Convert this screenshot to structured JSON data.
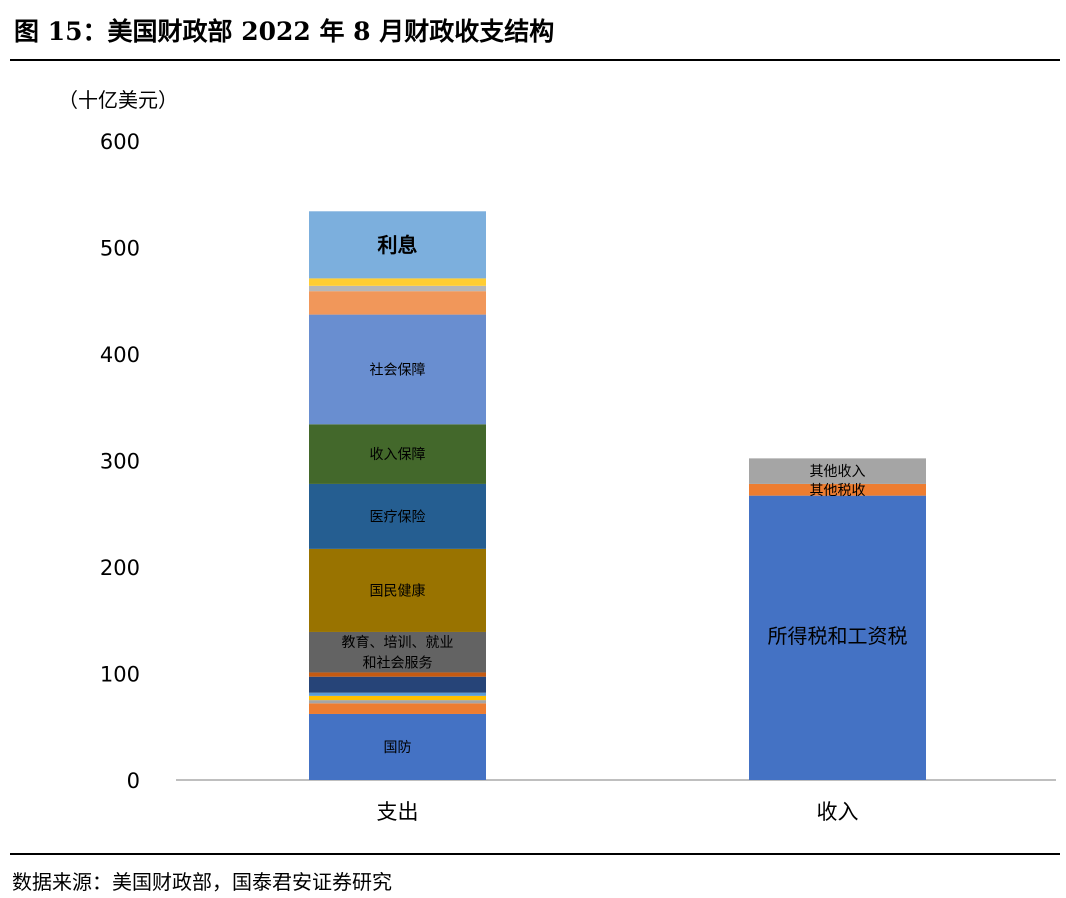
{
  "header": {
    "title": "图 15：美国财政部 2022 年 8 月财政收支结构"
  },
  "footer": {
    "source": "数据来源：美国财政部，国泰君安证券研究"
  },
  "chart_data": {
    "type": "bar",
    "stacked": true,
    "unit_label": "（十亿美元）",
    "ylim": [
      0,
      600
    ],
    "yticks": [
      0,
      100,
      200,
      300,
      400,
      500,
      600
    ],
    "categories": [
      "支出",
      "收入"
    ],
    "stacks": [
      {
        "category": "支出",
        "segments": [
          {
            "name": "国防",
            "value": 62,
            "color": "#4472C4",
            "label": "国防"
          },
          {
            "name": "orange-1",
            "value": 10,
            "color": "#ED7D31",
            "label": ""
          },
          {
            "name": "gray-1",
            "value": 3,
            "color": "#A5A5A5",
            "label": ""
          },
          {
            "name": "yellow-1",
            "value": 4,
            "color": "#FFC000",
            "label": ""
          },
          {
            "name": "lightblue-1",
            "value": 3,
            "color": "#5B9BD5",
            "label": ""
          },
          {
            "name": "darkblue-1",
            "value": 15,
            "color": "#264478",
            "label": ""
          },
          {
            "name": "darkorange-1",
            "value": 4,
            "color": "#C55A11",
            "label": ""
          },
          {
            "name": "教育、培训、就业和社会服务",
            "value": 38,
            "color": "#636363",
            "label": "教育、培训、就业\n和社会服务"
          },
          {
            "name": "国民健康",
            "value": 78,
            "color": "#997300",
            "label": "国民健康"
          },
          {
            "name": "医疗保险",
            "value": 61,
            "color": "#255E91",
            "label": "医疗保险"
          },
          {
            "name": "收入保障",
            "value": 56,
            "color": "#43682B",
            "label": "收入保障"
          },
          {
            "name": "社会保障",
            "value": 103,
            "color": "#698ED0",
            "label": "社会保障"
          },
          {
            "name": "orange-2",
            "value": 22,
            "color": "#F1975A",
            "label": ""
          },
          {
            "name": "gray-2",
            "value": 5,
            "color": "#B7B7B7",
            "label": ""
          },
          {
            "name": "yellow-2",
            "value": 7,
            "color": "#FFCD33",
            "label": ""
          },
          {
            "name": "利息",
            "value": 63,
            "color": "#7CAFDD",
            "label": "利息"
          }
        ]
      },
      {
        "category": "收入",
        "segments": [
          {
            "name": "所得税和工资税",
            "value": 267,
            "color": "#4472C4",
            "label": "所得税和工资税"
          },
          {
            "name": "其他税收",
            "value": 11,
            "color": "#ED7D31",
            "label": "其他税收"
          },
          {
            "name": "其他收入",
            "value": 24,
            "color": "#A5A5A5",
            "label": "其他收入"
          }
        ]
      }
    ]
  }
}
